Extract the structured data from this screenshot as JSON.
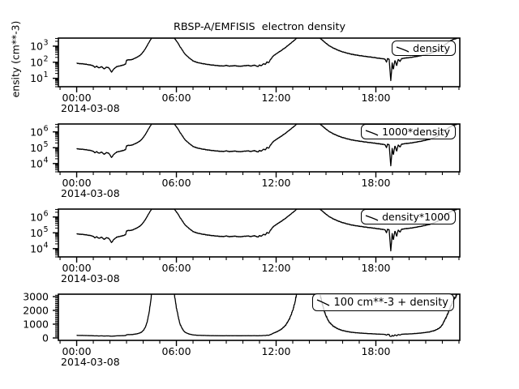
{
  "window": {
    "background": "#ffffff"
  },
  "colors": {
    "line": "#000000",
    "frame": "#000000",
    "legend_border": "#000000",
    "legend_background": "rgba(255,255,255,0.78)"
  },
  "chart_data": {
    "type": "line",
    "title": "RBSP-A/EMFISIS  electron density",
    "x_axis": {
      "unit": "time of day on 2014-03-08",
      "range_hours": [
        -1.1,
        23.05
      ],
      "minor_step_hours": 1,
      "date_label": "2014-03-08",
      "ticks": [
        {
          "t": 0,
          "label": "00:00"
        },
        {
          "t": 6,
          "label": "06:00"
        },
        {
          "t": 12,
          "label": "12:00"
        },
        {
          "t": 18,
          "label": "18:00"
        }
      ]
    },
    "base_series": {
      "name": "density",
      "units": "cm**-3",
      "points": [
        [
          0.0,
          85
        ],
        [
          0.2,
          82
        ],
        [
          0.4,
          79
        ],
        [
          0.6,
          73
        ],
        [
          0.8,
          68
        ],
        [
          1.0,
          60
        ],
        [
          1.1,
          47
        ],
        [
          1.2,
          57
        ],
        [
          1.35,
          44
        ],
        [
          1.5,
          54
        ],
        [
          1.65,
          38
        ],
        [
          1.8,
          50
        ],
        [
          1.95,
          43
        ],
        [
          2.1,
          24
        ],
        [
          2.25,
          40
        ],
        [
          2.4,
          52
        ],
        [
          2.55,
          58
        ],
        [
          2.7,
          62
        ],
        [
          2.85,
          70
        ],
        [
          2.95,
          78
        ],
        [
          3.0,
          130
        ],
        [
          3.1,
          145
        ],
        [
          3.2,
          138
        ],
        [
          3.35,
          150
        ],
        [
          3.5,
          175
        ],
        [
          3.65,
          210
        ],
        [
          3.8,
          260
        ],
        [
          3.9,
          330
        ],
        [
          4.0,
          430
        ],
        [
          4.1,
          620
        ],
        [
          4.2,
          900
        ],
        [
          4.3,
          1400
        ],
        [
          4.4,
          2100
        ],
        [
          4.5,
          3100
        ],
        [
          4.6,
          4300
        ],
        [
          4.8,
          5400
        ],
        [
          5.0,
          5900
        ],
        [
          5.2,
          6100
        ],
        [
          5.4,
          5900
        ],
        [
          5.6,
          5100
        ],
        [
          5.8,
          3700
        ],
        [
          5.9,
          2900
        ],
        [
          6.0,
          2150
        ],
        [
          6.1,
          1500
        ],
        [
          6.2,
          1000
        ],
        [
          6.3,
          700
        ],
        [
          6.4,
          480
        ],
        [
          6.5,
          340
        ],
        [
          6.6,
          265
        ],
        [
          6.7,
          215
        ],
        [
          6.8,
          175
        ],
        [
          6.9,
          145
        ],
        [
          7.0,
          122
        ],
        [
          7.2,
          100
        ],
        [
          7.4,
          89
        ],
        [
          7.6,
          81
        ],
        [
          7.8,
          75
        ],
        [
          8.0,
          70
        ],
        [
          8.2,
          66
        ],
        [
          8.5,
          61
        ],
        [
          8.8,
          58
        ],
        [
          9.0,
          63
        ],
        [
          9.2,
          57
        ],
        [
          9.5,
          61
        ],
        [
          9.8,
          56
        ],
        [
          10.0,
          59
        ],
        [
          10.3,
          63
        ],
        [
          10.5,
          58
        ],
        [
          10.7,
          66
        ],
        [
          10.9,
          53
        ],
        [
          11.0,
          68
        ],
        [
          11.1,
          60
        ],
        [
          11.25,
          82
        ],
        [
          11.35,
          72
        ],
        [
          11.45,
          105
        ],
        [
          11.55,
          92
        ],
        [
          11.65,
          140
        ],
        [
          11.8,
          230
        ],
        [
          12.0,
          330
        ],
        [
          12.2,
          450
        ],
        [
          12.4,
          620
        ],
        [
          12.6,
          880
        ],
        [
          12.8,
          1300
        ],
        [
          13.0,
          1900
        ],
        [
          13.1,
          2350
        ],
        [
          13.2,
          2850
        ],
        [
          13.3,
          3500
        ],
        [
          13.5,
          4900
        ],
        [
          13.8,
          5700
        ],
        [
          14.1,
          5900
        ],
        [
          14.4,
          5300
        ],
        [
          14.55,
          4100
        ],
        [
          14.65,
          3100
        ],
        [
          14.75,
          2500
        ],
        [
          14.85,
          2050
        ],
        [
          15.0,
          1500
        ],
        [
          15.2,
          1050
        ],
        [
          15.4,
          800
        ],
        [
          15.6,
          640
        ],
        [
          15.8,
          520
        ],
        [
          16.0,
          440
        ],
        [
          16.3,
          360
        ],
        [
          16.6,
          305
        ],
        [
          17.0,
          260
        ],
        [
          17.4,
          228
        ],
        [
          17.8,
          202
        ],
        [
          18.0,
          188
        ],
        [
          18.2,
          176
        ],
        [
          18.4,
          166
        ],
        [
          18.55,
          155
        ],
        [
          18.65,
          100
        ],
        [
          18.7,
          168
        ],
        [
          18.8,
          150
        ],
        [
          18.9,
          7
        ],
        [
          18.98,
          90
        ],
        [
          19.05,
          34
        ],
        [
          19.15,
          140
        ],
        [
          19.25,
          58
        ],
        [
          19.35,
          158
        ],
        [
          19.45,
          108
        ],
        [
          19.55,
          168
        ],
        [
          19.7,
          178
        ],
        [
          19.9,
          188
        ],
        [
          20.1,
          198
        ],
        [
          20.4,
          225
        ],
        [
          20.8,
          268
        ],
        [
          21.2,
          335
        ],
        [
          21.6,
          470
        ],
        [
          21.9,
          690
        ],
        [
          22.1,
          1100
        ],
        [
          22.3,
          1600
        ],
        [
          22.5,
          2200
        ],
        [
          22.7,
          2700
        ],
        [
          22.85,
          3000
        ],
        [
          23.0,
          3600
        ],
        [
          23.1,
          4300
        ]
      ]
    },
    "panels": [
      {
        "legend_label": "density",
        "ylabel": "ensity (cm**-3)",
        "yscale": "log",
        "ylim": [
          3,
          3162
        ],
        "ytick_exponents": [
          1,
          2,
          3
        ],
        "transform": {
          "scale": 1,
          "offset": 0
        },
        "clip_mode": "saturate",
        "date_label": "2014-03-08"
      },
      {
        "legend_label": "1000*density",
        "yscale": "log",
        "ylim": [
          3000,
          3162000
        ],
        "ytick_exponents": [
          4,
          5,
          6
        ],
        "transform": {
          "scale": 1000,
          "offset": 0
        },
        "clip_mode": "saturate",
        "date_label": "2014-03-08"
      },
      {
        "legend_label": "density*1000",
        "yscale": "log",
        "ylim": [
          3000,
          3162000
        ],
        "ytick_exponents": [
          4,
          5,
          6
        ],
        "transform": {
          "scale": 1000,
          "offset": 0
        },
        "clip_mode": "saturate",
        "date_label": "2014-03-08"
      },
      {
        "legend_label": "100 cm**-3 + density",
        "yscale": "linear",
        "ylim": [
          -176,
          3176
        ],
        "yticks": [
          0,
          1000,
          2000,
          3000
        ],
        "ytick_minor_step": 100,
        "transform": {
          "scale": 1,
          "offset": 100
        },
        "clip_mode": "gap",
        "date_label": "2014-03-08"
      }
    ]
  }
}
